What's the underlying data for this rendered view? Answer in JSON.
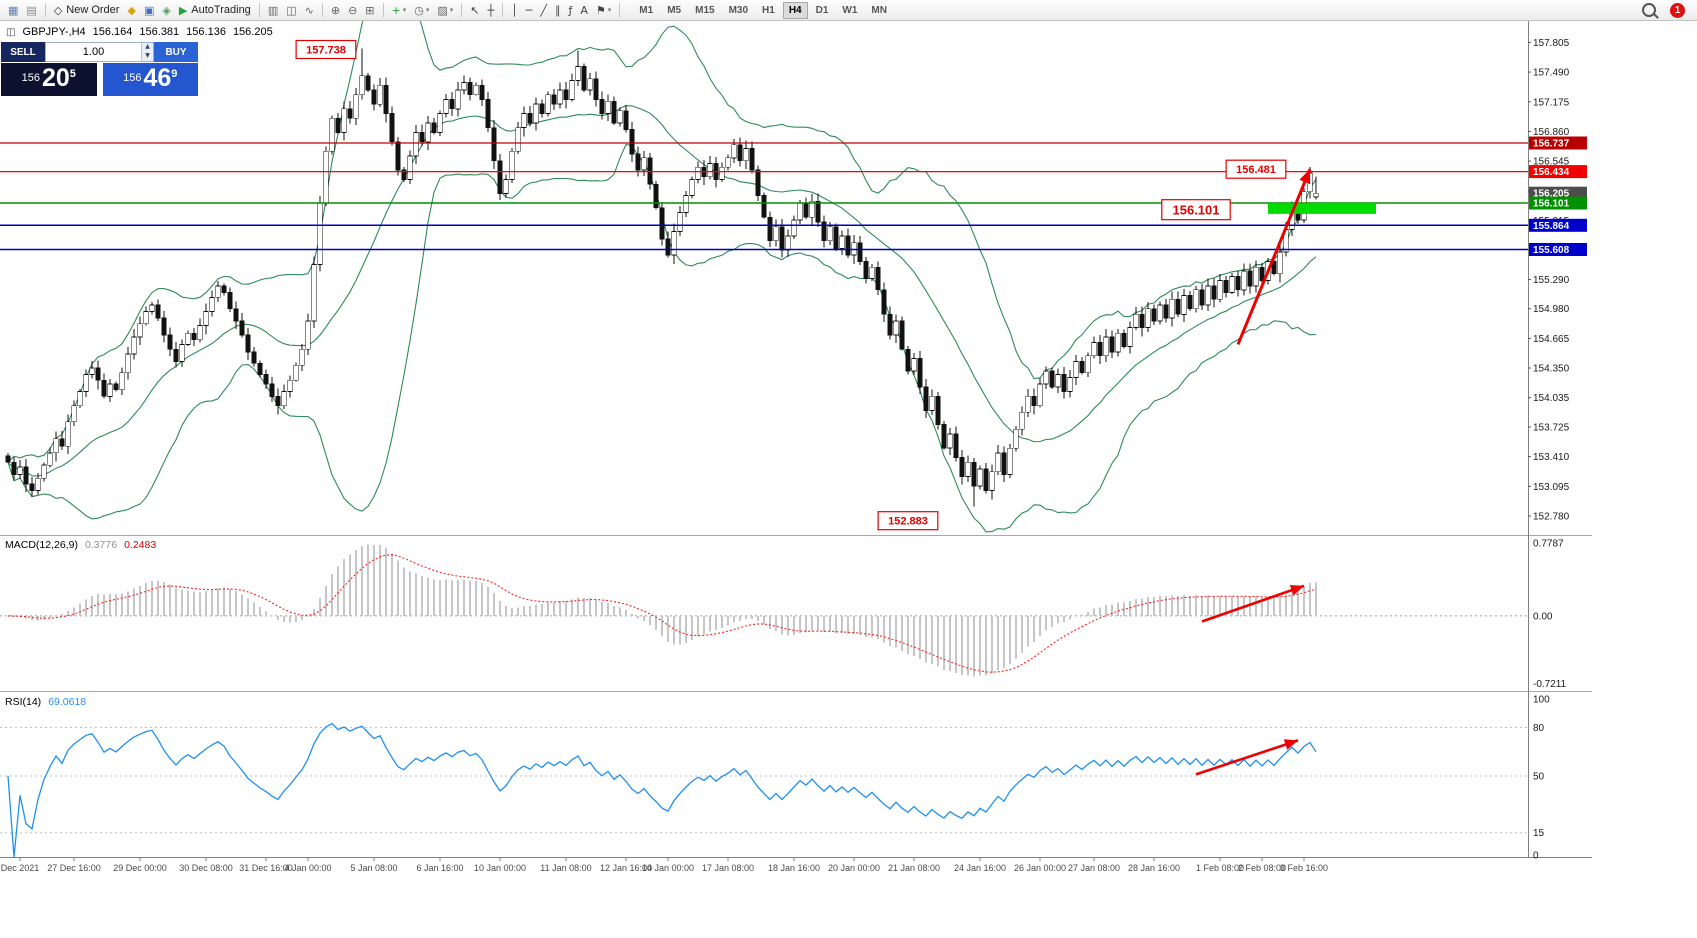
{
  "icons": {
    "caret": "▾",
    "spinner_up": "▲",
    "spinner_down": "▼",
    "header_chart": "◫"
  },
  "toolbar": {
    "left_items": [
      {
        "name": "new-chart",
        "glyph": "▦",
        "color": "#5b7fb4",
        "sep_after": false
      },
      {
        "name": "profiles",
        "glyph": "▤",
        "color": "#8a8a8a",
        "sep_after": true
      },
      {
        "name": "new-order",
        "glyph": "◇",
        "label": "New Order",
        "color": "#2f2f2f",
        "sep_after": false
      },
      {
        "name": "metaeditor",
        "glyph": "◆",
        "color": "#dca311",
        "sep_after": false
      },
      {
        "name": "terminal",
        "glyph": "▣",
        "color": "#3f6fc2",
        "sep_after": false
      },
      {
        "name": "navigator",
        "glyph": "◈",
        "color": "#4d9e57",
        "sep_after": false
      },
      {
        "name": "autotrading",
        "glyph": "▶",
        "label": "AutoTrading",
        "color": "#23a33c",
        "sep_after": true
      },
      {
        "name": "bar-chart",
        "glyph": "▥",
        "color": "#666666",
        "sep_after": false
      },
      {
        "name": "candlestick-chart",
        "glyph": "◫",
        "color": "#666666",
        "sep_after": false
      },
      {
        "name": "line-chart",
        "glyph": "∿",
        "color": "#666666",
        "sep_after": true
      },
      {
        "name": "zoom-in",
        "glyph": "⊕",
        "color": "#666666",
        "sep_after": false
      },
      {
        "name": "zoom-out",
        "glyph": "⊖",
        "color": "#666666",
        "sep_after": false
      },
      {
        "name": "tile-windows",
        "glyph": "⊞",
        "color": "#666666",
        "sep_after": true
      },
      {
        "name": "indicators",
        "glyph": "+",
        "caret": true,
        "color": "#1f9e43",
        "sep_after": false
      },
      {
        "name": "periods",
        "glyph": "◷",
        "caret": true,
        "color": "#666666",
        "sep_after": false
      },
      {
        "name": "templates",
        "glyph": "▨",
        "caret": true,
        "color": "#666666",
        "sep_after": true
      },
      {
        "name": "cursor",
        "glyph": "↖",
        "color": "#444444",
        "sep_after": false
      },
      {
        "name": "crosshair",
        "glyph": "┼",
        "color": "#444444",
        "sep_after": true
      },
      {
        "name": "vertical-line",
        "glyph": "│",
        "color": "#444444",
        "sep_after": false
      },
      {
        "name": "horizontal-line",
        "glyph": "─",
        "color": "#444444",
        "sep_after": false
      },
      {
        "name": "trendline",
        "glyph": "╱",
        "color": "#444444",
        "sep_after": false
      },
      {
        "name": "channel",
        "glyph": "∥",
        "color": "#444444",
        "sep_after": false
      },
      {
        "name": "fibonacci",
        "glyph": "ƒ",
        "color": "#444444",
        "sep_after": false
      },
      {
        "name": "text-label",
        "glyph": "A",
        "color": "#444444",
        "sep_after": false
      },
      {
        "name": "arrows-tool",
        "glyph": "⚑",
        "caret": true,
        "color": "#444444",
        "sep_after": true
      }
    ],
    "timeframes": [
      "M1",
      "M5",
      "M15",
      "M30",
      "H1",
      "H4",
      "D1",
      "W1",
      "MN"
    ],
    "active_timeframe": "H4",
    "notification_badge": "1"
  },
  "chart_header": {
    "symbol": "GBPJPY-,H4",
    "open": "156.164",
    "high": "156.381",
    "low": "156.136",
    "close": "156.205"
  },
  "trade_panel": {
    "sell_label": "SELL",
    "buy_label": "BUY",
    "volume": "1.00",
    "sell_price": {
      "prefix": "156",
      "big": "20",
      "sup": "5"
    },
    "buy_price": {
      "prefix": "156",
      "big": "46",
      "sup": "9"
    }
  },
  "chart_data": {
    "type": "candlestick",
    "symbol": "GBPJPY",
    "timeframe": "H4",
    "ylim": [
      152.6,
      158.0
    ],
    "price_scale": [
      "157.805",
      "157.490",
      "157.175",
      "156.860",
      "156.545",
      "156.230",
      "155.915",
      "155.600",
      "155.290",
      "154.980",
      "154.665",
      "154.350",
      "154.035",
      "153.725",
      "153.410",
      "153.095",
      "152.780"
    ],
    "price_tags": [
      {
        "text": "156.737",
        "price": 156.737,
        "bg": "#b80000"
      },
      {
        "text": "156.434",
        "price": 156.434,
        "bg": "#f00000"
      },
      {
        "text": "156.205",
        "price": 156.205,
        "bg": "#4d4d4d"
      },
      {
        "text": "156.101",
        "price": 156.101,
        "bg": "#009000"
      },
      {
        "text": "155.864",
        "price": 155.864,
        "bg": "#0000cc"
      },
      {
        "text": "155.608",
        "price": 155.608,
        "bg": "#0000cc"
      }
    ],
    "hlines": [
      {
        "price": 156.737,
        "color": "#c00000",
        "width": 1.2
      },
      {
        "price": 156.434,
        "color": "#ff0000",
        "width": 1.2
      },
      {
        "price": 156.101,
        "color": "#009000",
        "width": 1.5
      },
      {
        "price": 155.864,
        "color": "#0000bb",
        "width": 1.5
      },
      {
        "price": 155.608,
        "color": "#0000bb",
        "width": 1.5
      }
    ],
    "highlight_rect": {
      "i1": 210,
      "i2": 228,
      "price_top": 156.1,
      "price_bottom": 155.985,
      "color": "#00dc00"
    },
    "labels": [
      {
        "text": "157.738",
        "i": 53,
        "price": 157.73,
        "size": 11
      },
      {
        "text": "156.481",
        "i": 208,
        "price": 156.46,
        "size": 11
      },
      {
        "text": "156.101",
        "i": 198,
        "price": 156.03,
        "size": 13
      },
      {
        "text": "152.883",
        "i": 150,
        "price": 152.73,
        "size": 11
      }
    ],
    "arrows": [
      {
        "pane": "main",
        "i1": 205,
        "v1": 154.6,
        "i2": 217,
        "v2": 156.46,
        "width": 3
      },
      {
        "pane": "macd",
        "i1": 199,
        "v1": -0.06,
        "i2": 216,
        "v2": 0.32,
        "width": 2.6
      },
      {
        "pane": "rsi",
        "i1": 198,
        "v1": 51,
        "i2": 215,
        "v2": 72,
        "width": 2.6
      }
    ],
    "bollinger": {
      "period": 20,
      "deviation": 2,
      "color": "#2e8b57"
    },
    "macd": {
      "label": "MACD(12,26,9)",
      "value_main": "0.3776",
      "value_signal": "0.2483",
      "scale": [
        {
          "t": "0.7787",
          "v": 0.7787
        },
        {
          "t": "0.00",
          "v": 0.0
        },
        {
          "t": "-0.7211",
          "v": -0.7211
        }
      ],
      "vmax": 0.82,
      "vmin": -0.78,
      "hist_color": "#c6c6c6",
      "signal_color": "#ff2020"
    },
    "rsi": {
      "label": "RSI(14)",
      "value": "69.0618",
      "scale": [
        {
          "t": "100",
          "v": 100
        },
        {
          "t": "80",
          "v": 80
        },
        {
          "t": "50",
          "v": 50
        },
        {
          "t": "15",
          "v": 15
        },
        {
          "t": "0",
          "v": 0
        }
      ],
      "levels": [
        80,
        50,
        15
      ],
      "color": "#2090f0"
    },
    "time_axis": [
      {
        "i": 2,
        "t": "Dec 2021"
      },
      {
        "i": 11,
        "t": "27 Dec 16:00"
      },
      {
        "i": 22,
        "t": "29 Dec 00:00"
      },
      {
        "i": 33,
        "t": "30 Dec 08:00"
      },
      {
        "i": 43,
        "t": "31 Dec 16:00"
      },
      {
        "i": 50,
        "t": "4 Jan 00:00"
      },
      {
        "i": 61,
        "t": "5 Jan 08:00"
      },
      {
        "i": 72,
        "t": "6 Jan 16:00"
      },
      {
        "i": 82,
        "t": "10 Jan 00:00"
      },
      {
        "i": 93,
        "t": "11 Jan 08:00"
      },
      {
        "i": 103,
        "t": "12 Jan 16:00"
      },
      {
        "i": 110,
        "t": "14 Jan 00:00"
      },
      {
        "i": 120,
        "t": "17 Jan 08:00"
      },
      {
        "i": 131,
        "t": "18 Jan 16:00"
      },
      {
        "i": 141,
        "t": "20 Jan 00:00"
      },
      {
        "i": 151,
        "t": "21 Jan 08:00"
      },
      {
        "i": 162,
        "t": "24 Jan 16:00"
      },
      {
        "i": 172,
        "t": "26 Jan 00:00"
      },
      {
        "i": 181,
        "t": "27 Jan 08:00"
      },
      {
        "i": 191,
        "t": "28 Jan 16:00"
      },
      {
        "i": 202,
        "t": "1 Feb 08:00"
      },
      {
        "i": 209,
        "t": "2 Feb 08:00"
      },
      {
        "i": 216,
        "t": "3 Feb 16:00"
      }
    ],
    "candles": {
      "closes": [
        153.35,
        153.22,
        153.3,
        153.12,
        153.05,
        153.18,
        153.32,
        153.45,
        153.6,
        153.52,
        153.78,
        153.95,
        154.1,
        154.28,
        154.35,
        154.22,
        154.05,
        154.18,
        154.12,
        154.3,
        154.5,
        154.68,
        154.82,
        154.95,
        155.02,
        154.88,
        154.7,
        154.55,
        154.42,
        154.6,
        154.72,
        154.65,
        154.8,
        154.95,
        155.1,
        155.22,
        155.15,
        154.98,
        154.85,
        154.7,
        154.52,
        154.4,
        154.28,
        154.18,
        154.05,
        153.95,
        154.1,
        154.22,
        154.38,
        154.55,
        154.85,
        155.45,
        156.1,
        156.65,
        157.0,
        156.85,
        157.1,
        157.0,
        157.25,
        157.45,
        157.3,
        157.15,
        157.35,
        157.05,
        156.75,
        156.45,
        156.35,
        156.6,
        156.85,
        156.75,
        156.95,
        156.85,
        157.05,
        157.2,
        157.1,
        157.3,
        157.38,
        157.25,
        157.35,
        157.2,
        156.9,
        156.55,
        156.2,
        156.35,
        156.65,
        156.9,
        157.05,
        156.95,
        157.15,
        157.05,
        157.25,
        157.15,
        157.3,
        157.2,
        157.4,
        157.55,
        157.3,
        157.42,
        157.2,
        157.05,
        157.18,
        156.95,
        157.08,
        156.88,
        156.62,
        156.45,
        156.58,
        156.3,
        156.05,
        155.72,
        155.55,
        155.8,
        156.0,
        156.18,
        156.35,
        156.48,
        156.38,
        156.52,
        156.35,
        156.48,
        156.58,
        156.72,
        156.55,
        156.68,
        156.45,
        156.18,
        155.95,
        155.7,
        155.85,
        155.6,
        155.75,
        155.92,
        156.1,
        155.95,
        156.12,
        155.9,
        155.7,
        155.85,
        155.62,
        155.75,
        155.55,
        155.68,
        155.48,
        155.3,
        155.42,
        155.18,
        154.92,
        154.7,
        154.85,
        154.55,
        154.32,
        154.45,
        154.15,
        153.9,
        154.05,
        153.75,
        153.5,
        153.65,
        153.4,
        153.2,
        153.35,
        153.1,
        153.28,
        153.05,
        153.25,
        153.45,
        153.22,
        153.5,
        153.7,
        153.88,
        154.05,
        153.95,
        154.18,
        154.32,
        154.15,
        154.28,
        154.1,
        154.25,
        154.42,
        154.3,
        154.48,
        154.62,
        154.48,
        154.68,
        154.52,
        154.72,
        154.58,
        154.78,
        154.92,
        154.78,
        154.98,
        154.85,
        155.02,
        154.88,
        155.08,
        154.92,
        155.12,
        154.98,
        155.18,
        155.02,
        155.22,
        155.08,
        155.28,
        155.15,
        155.32,
        155.18,
        155.38,
        155.22,
        155.42,
        155.28,
        155.48,
        155.35,
        155.58,
        155.82,
        156.05,
        155.92,
        156.22,
        156.42,
        156.205
      ],
      "overrides": {
        "59": {
          "h": 157.738
        },
        "95": {
          "h": 157.72
        },
        "161": {
          "l": 152.883
        },
        "217": {
          "h": 156.481
        },
        "218": {
          "o": 156.164,
          "h": 156.381,
          "l": 156.136
        }
      }
    }
  }
}
